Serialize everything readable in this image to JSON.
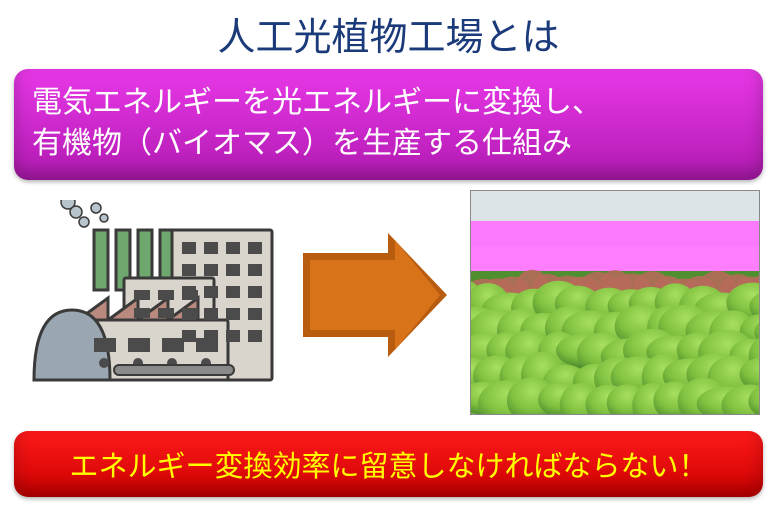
{
  "title": {
    "text": "人工光植物工場とは",
    "color": "#1a3a7a"
  },
  "banner_top": {
    "line1": "電気エネルギーを光エネルギーに変換し、",
    "line2": "有機物（バイオマス）を生産する仕組み",
    "text_color": "#ffffff",
    "bg_top": "#e838e8",
    "bg_bottom": "#b21ab2"
  },
  "banner_bottom": {
    "text": "エネルギー変換効率に留意しなければならない！",
    "text_color": "#ffff00",
    "bg_top": "#ff1a1a",
    "bg_bottom": "#cc0000"
  },
  "arrow": {
    "fill": "#d9731a",
    "stroke": "#b85c10"
  },
  "factory_icon": {
    "building_fill": "#d9d4cc",
    "building_stroke": "#3a3a3a",
    "roof_fill": "#b9897d",
    "stack_fill": "#6fa86f",
    "dome_fill": "#9aa6b2",
    "window_fill": "#4b4b4b",
    "smoke_fill": "#b8c4cc"
  },
  "photo": {
    "light_color": "#ff66ff",
    "leaf_light": "#a8e060",
    "leaf_mid": "#7fbf3f",
    "leaf_dark": "#4f8f2f",
    "leaf_red": "#b86a5a",
    "ceiling": "#dde4e8"
  }
}
